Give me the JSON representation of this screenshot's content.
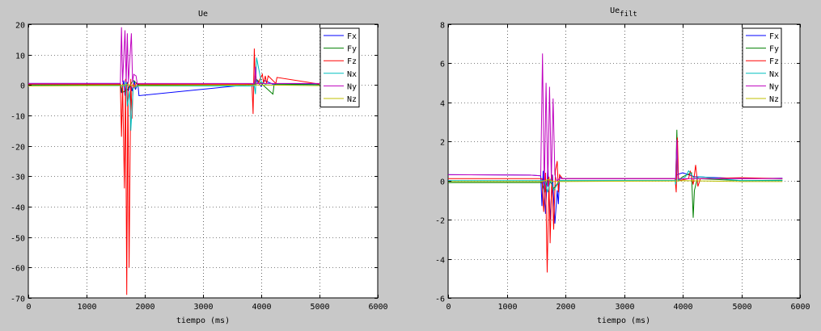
{
  "colors": {
    "figure_bg": "#c8c8c8",
    "Fx": "#0000ff",
    "Fy": "#007f00",
    "Fz": "#ff0000",
    "Nx": "#00bfbf",
    "Ny": "#bf00bf",
    "Nz": "#bfbf00"
  },
  "chart_data": [
    {
      "type": "line",
      "title": "Ue",
      "title_sub": "",
      "xlabel": "tiempo (ms)",
      "ylabel": "",
      "xlim": [
        0,
        6000
      ],
      "ylim": [
        -70,
        20
      ],
      "xticks": [
        0,
        1000,
        2000,
        3000,
        4000,
        5000,
        6000
      ],
      "yticks": [
        -70,
        -60,
        -50,
        -40,
        -30,
        -20,
        -10,
        0,
        10,
        20
      ],
      "grid": true,
      "legend_position": "top-right",
      "legend": [
        "Fx",
        "Fy",
        "Fz",
        "Nx",
        "Ny",
        "Nz"
      ],
      "series": [
        {
          "name": "Fx",
          "x": [
            0,
            1580,
            1600,
            1640,
            1660,
            1700,
            1720,
            1760,
            1780,
            1820,
            1840,
            1880,
            1900,
            3880,
            3900,
            4000,
            4050,
            4200,
            5000
          ],
          "y": [
            0.5,
            0.5,
            -2.5,
            1.5,
            -3.5,
            1,
            -2,
            0.5,
            -2,
            1.5,
            -1.5,
            0.5,
            -3.5,
            0.3,
            2,
            -0.5,
            1.5,
            0.3,
            0.4
          ]
        },
        {
          "name": "Fy",
          "x": [
            0,
            1590,
            1610,
            1700,
            1800,
            1900,
            3890,
            3910,
            4000,
            4200,
            4220,
            4250,
            5000
          ],
          "y": [
            0,
            0,
            -2.5,
            -1.5,
            1.5,
            0,
            0,
            2,
            0.5,
            -3,
            0,
            0.3,
            0.1
          ]
        },
        {
          "name": "Fz",
          "x": [
            0,
            1580,
            1600,
            1620,
            1650,
            1670,
            1690,
            1710,
            1730,
            1760,
            1780,
            1800,
            1830,
            1850,
            1900,
            3840,
            3860,
            3880,
            3900,
            3940,
            4020,
            4040,
            4070,
            4090,
            4120,
            4250,
            4270,
            5000
          ],
          "y": [
            0.3,
            0.3,
            -17,
            0.5,
            -34,
            2,
            -69,
            1,
            -60,
            2,
            -11,
            0.5,
            -1,
            0.5,
            0.3,
            0.3,
            -9.5,
            12,
            0.3,
            0.5,
            3.5,
            0.5,
            3,
            0.5,
            3,
            0.5,
            2.5,
            0.3
          ]
        },
        {
          "name": "Nx",
          "x": [
            0,
            1660,
            1680,
            1700,
            1740,
            1760,
            1800,
            1900,
            3880,
            3900,
            3920,
            4000,
            4100,
            5000
          ],
          "y": [
            -0.2,
            -0.2,
            1.5,
            -7,
            -2,
            -15,
            -1,
            -0.3,
            -0.3,
            -3,
            9,
            1,
            0,
            -0.1
          ]
        },
        {
          "name": "Ny",
          "x": [
            0,
            1580,
            1600,
            1620,
            1660,
            1680,
            1700,
            1720,
            1770,
            1790,
            1810,
            1850,
            1870,
            1890,
            3880,
            3900,
            3920,
            5000
          ],
          "y": [
            0.5,
            0.5,
            19,
            0.8,
            18,
            0.8,
            17,
            0.8,
            17,
            1,
            3.5,
            3,
            0.5,
            0.5,
            0.5,
            6,
            0.5,
            0.5
          ]
        },
        {
          "name": "Nz",
          "x": [
            0,
            1600,
            1700,
            1800,
            1900,
            3900,
            4000,
            5000
          ],
          "y": [
            -0.3,
            -0.1,
            0.2,
            -0.2,
            -0.2,
            0,
            0,
            -0.2
          ]
        }
      ]
    },
    {
      "type": "line",
      "title": "Ue",
      "title_sub": "filt",
      "xlabel": "tiempo (ms)",
      "ylabel": "",
      "xlim": [
        0,
        6000
      ],
      "ylim": [
        -6,
        8
      ],
      "xticks": [
        0,
        1000,
        2000,
        3000,
        4000,
        5000,
        6000
      ],
      "yticks": [
        -6,
        -4,
        -2,
        0,
        2,
        4,
        6,
        8
      ],
      "grid": true,
      "legend_position": "top-right",
      "legend": [
        "Fx",
        "Fy",
        "Fz",
        "Nx",
        "Ny",
        "Nz"
      ],
      "series": [
        {
          "name": "Fx",
          "x": [
            0,
            1400,
            1580,
            1600,
            1620,
            1660,
            1700,
            1740,
            1780,
            1820,
            1860,
            1880,
            1900,
            1960,
            3880,
            3900,
            4000,
            4200,
            5000,
            5700
          ],
          "y": [
            0.3,
            0.28,
            0.25,
            -1.3,
            0.5,
            -1.7,
            0.8,
            -2.0,
            0.3,
            -2.2,
            -0.5,
            -1.2,
            0.2,
            0.1,
            0.1,
            0.3,
            0.4,
            0.2,
            0.1,
            0.12
          ]
        },
        {
          "name": "Fy",
          "x": [
            0,
            1600,
            1650,
            1700,
            1800,
            1900,
            3880,
            3900,
            3920,
            4000,
            4150,
            4180,
            4200,
            4250,
            5000,
            5700
          ],
          "y": [
            -0.1,
            -0.1,
            -0.6,
            0.2,
            -0.4,
            0,
            0,
            2.6,
            0,
            0.2,
            0.4,
            -1.9,
            -0.5,
            0.1,
            0,
            0.02
          ]
        },
        {
          "name": "Fz",
          "x": [
            0,
            1600,
            1630,
            1660,
            1690,
            1720,
            1740,
            1770,
            1800,
            1830,
            1860,
            1880,
            1900,
            1950,
            3870,
            3890,
            3910,
            3930,
            4100,
            4130,
            4180,
            4220,
            4260,
            4300,
            5000,
            5700
          ],
          "y": [
            0.1,
            0.1,
            -1.6,
            0.4,
            -4.7,
            0.2,
            -3.2,
            0.3,
            -2.5,
            0.5,
            1.0,
            -0.6,
            0.3,
            0.1,
            0.1,
            -0.6,
            2.2,
            0,
            0.1,
            0.5,
            -0.2,
            0.8,
            -0.3,
            0.1,
            0.15,
            0.1
          ]
        },
        {
          "name": "Nx",
          "x": [
            0,
            1650,
            1700,
            1750,
            1800,
            1900,
            3870,
            3880,
            3900,
            3920,
            4050,
            4100,
            4200,
            4300,
            5000,
            5700
          ],
          "y": [
            0,
            0,
            -0.6,
            0.1,
            -0.5,
            0,
            0,
            -0.2,
            1.9,
            0,
            0.2,
            0.5,
            0.1,
            0.2,
            0,
            0
          ]
        },
        {
          "name": "Ny",
          "x": [
            0,
            1400,
            1580,
            1610,
            1640,
            1670,
            1700,
            1730,
            1760,
            1790,
            1820,
            1850,
            1900,
            3880,
            3900,
            3920,
            5000,
            5700
          ],
          "y": [
            0.3,
            0.28,
            0.25,
            6.5,
            -0.5,
            5.0,
            -0.3,
            4.8,
            0,
            4.2,
            0.3,
            0,
            0.1,
            0.1,
            2.1,
            0.1,
            0.1,
            0.1
          ]
        },
        {
          "name": "Nz",
          "x": [
            0,
            1600,
            1700,
            1800,
            1900,
            3900,
            4000,
            5000,
            5700
          ],
          "y": [
            -0.05,
            -0.05,
            0.05,
            -0.05,
            -0.05,
            -0.02,
            0,
            -0.05,
            -0.05
          ]
        }
      ]
    }
  ]
}
